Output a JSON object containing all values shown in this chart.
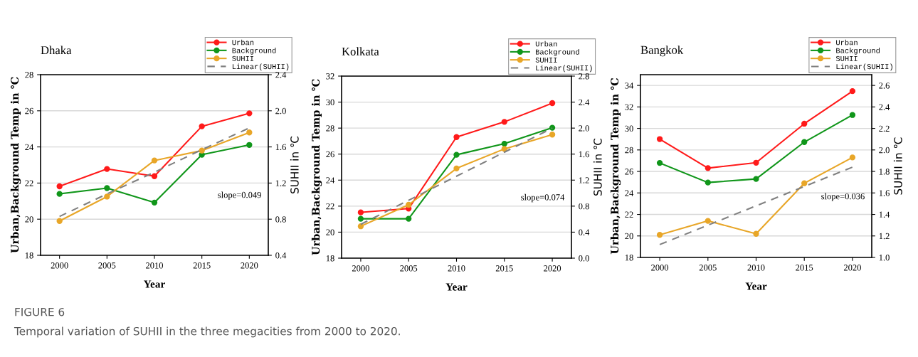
{
  "chart_data": [
    {
      "type": "line",
      "title": "Dhaka",
      "xlabel": "Year",
      "ylabel": "Urban,Background Temp in ℃",
      "y2label": "SUHII in ℃",
      "x": [
        2000,
        2005,
        2010,
        2015,
        2020
      ],
      "xlim": [
        1998,
        2022
      ],
      "xticks": [
        2000,
        2005,
        2010,
        2015,
        2020
      ],
      "ylim": [
        18,
        28
      ],
      "yticks": [
        18,
        20,
        22,
        24,
        26,
        28
      ],
      "y2lim": [
        0.4,
        2.4
      ],
      "y2ticks": [
        0.4,
        0.8,
        1.2,
        1.6,
        {
          "value": 2,
          "label": "2.0"
        },
        2.4
      ],
      "grid": "y",
      "legend": "top right",
      "marker": "circle",
      "annotations": [
        "slope=0.049",
        "FIGURE 6",
        "Temporal variation of SUHII in the three megacities from 2000 to 2020."
      ],
      "series": [
        {
          "name": "Urban",
          "color": "#ff1a1a",
          "values": [
            21.82,
            22.78,
            22.38,
            25.14,
            25.86
          ]
        },
        {
          "name": "Background",
          "color": "#10961a",
          "values": [
            21.4,
            21.72,
            20.92,
            23.57,
            24.11
          ]
        },
        {
          "name": "SUHII",
          "color": "#e8a628",
          "axis": "y2",
          "values": [
            0.78,
            1.05,
            1.45,
            1.56,
            1.76
          ]
        },
        {
          "name": "Linear(SUHII)",
          "color": "#808080",
          "axis": "y2",
          "values": [
            0.83,
            1.08,
            1.32,
            1.57,
            1.81
          ],
          "marker": "none",
          "line_style": "dashed"
        }
      ]
    },
    {
      "type": "line",
      "title": "Kolkata",
      "xlabel": "Year",
      "ylabel": "Urban,Background Temp in ℃",
      "y2label": "SUHII in ℃",
      "x": [
        2000,
        2005,
        2010,
        2015,
        2020
      ],
      "xlim": [
        1998,
        2022
      ],
      "xticks": [
        2000,
        2005,
        2010,
        2015,
        2020
      ],
      "ylim": [
        18,
        32
      ],
      "yticks": [
        18,
        20,
        22,
        24,
        26,
        28,
        30,
        32
      ],
      "y2lim": [
        0,
        2.8
      ],
      "y2ticks": [
        {
          "value": 0,
          "label": "0.0"
        },
        0.4,
        0.8,
        1.2,
        1.6,
        {
          "value": 2,
          "label": "2.0"
        },
        2.4,
        2.8
      ],
      "grid": "y",
      "legend": "top right",
      "marker": "circle",
      "annotations": [
        "slope=0.074"
      ],
      "series": [
        {
          "name": "Urban",
          "color": "#ff1a1a",
          "values": [
            21.52,
            21.81,
            27.31,
            28.48,
            29.92
          ]
        },
        {
          "name": "Background",
          "color": "#10961a",
          "values": [
            21.03,
            21.03,
            25.95,
            26.8,
            28.03
          ]
        },
        {
          "name": "SUHII",
          "color": "#e8a628",
          "axis": "y2",
          "values": [
            0.49,
            0.82,
            1.38,
            1.68,
            1.9
          ]
        },
        {
          "name": "Linear(SUHII)",
          "color": "#808080",
          "axis": "y2",
          "values": [
            0.52,
            0.89,
            1.26,
            1.63,
            2.0
          ],
          "marker": "none",
          "line_style": "dashed"
        }
      ]
    },
    {
      "type": "line",
      "title": "Bangkok",
      "xlabel": "Year",
      "ylabel": "Urban,Background Temp in ℃",
      "y2label": "SUHII in ℃",
      "x": [
        2000,
        2005,
        2010,
        2015,
        2020
      ],
      "xlim": [
        1998,
        2022
      ],
      "xticks": [
        2000,
        2005,
        2010,
        2015,
        2020
      ],
      "ylim": [
        18,
        35
      ],
      "yticks": [
        18,
        20,
        22,
        24,
        26,
        28,
        30,
        32,
        34
      ],
      "y2lim": [
        1.0,
        2.7
      ],
      "y2ticks": [
        {
          "value": 1,
          "label": "1.0"
        },
        1.2,
        1.4,
        1.6,
        1.8,
        {
          "value": 2,
          "label": "2.0"
        },
        2.2,
        2.4,
        2.6
      ],
      "grid": "y",
      "legend": "top right",
      "marker": "circle",
      "annotations": [
        "slope=0.036"
      ],
      "series": [
        {
          "name": "Urban",
          "color": "#ff1a1a",
          "values": [
            29.01,
            26.31,
            26.81,
            30.44,
            33.47
          ]
        },
        {
          "name": "Background",
          "color": "#10961a",
          "values": [
            26.79,
            24.97,
            25.3,
            28.73,
            31.25
          ]
        },
        {
          "name": "SUHII",
          "color": "#e8a628",
          "axis": "y2",
          "values": [
            1.21,
            1.34,
            1.22,
            1.69,
            1.93
          ]
        },
        {
          "name": "Linear(SUHII)",
          "color": "#808080",
          "axis": "y2",
          "values": [
            1.12,
            1.3,
            1.48,
            1.66,
            1.84
          ],
          "marker": "none",
          "line_style": "dashed"
        }
      ]
    }
  ]
}
